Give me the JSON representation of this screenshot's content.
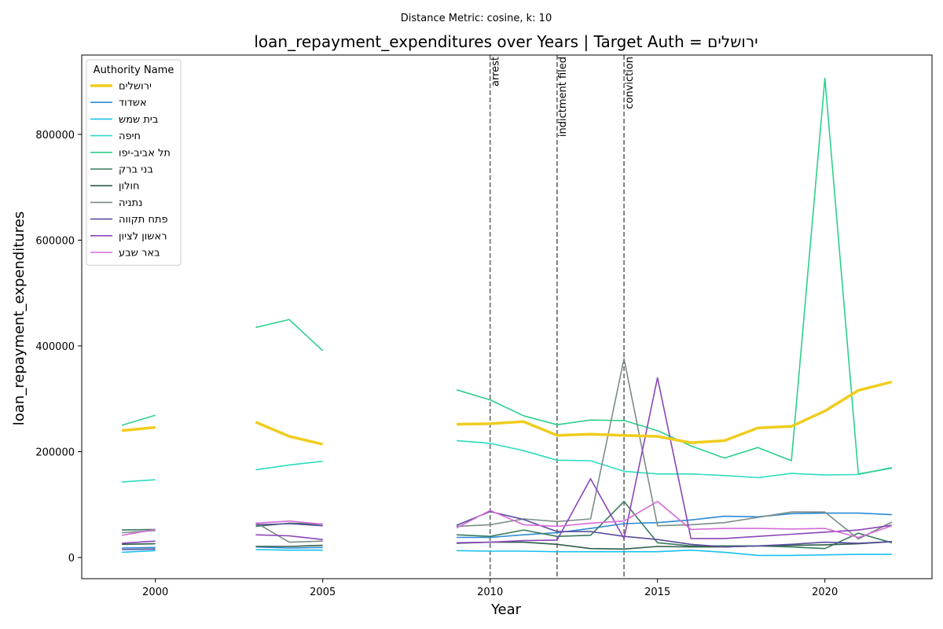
{
  "chart_data": {
    "type": "line",
    "suptitle": "Distance Metric: cosine, k: 10",
    "title": "loan_repayment_expenditures over Years | Target Auth = ירושלים",
    "xlabel": "Year",
    "ylabel": "loan_repayment_expenditures",
    "xlim": [
      1997.8,
      2023.2
    ],
    "ylim": [
      -40000,
      950000
    ],
    "x_ticks": [
      2000,
      2005,
      2010,
      2015,
      2020
    ],
    "y_ticks": [
      0,
      200000,
      400000,
      600000,
      800000
    ],
    "grid": false,
    "legend": {
      "title": "Authority Name",
      "placement": "top-left"
    },
    "events": [
      {
        "x": 2010,
        "label": "arrest"
      },
      {
        "x": 2012,
        "label": "indictment filed"
      },
      {
        "x": 2014,
        "label": "conviction"
      }
    ],
    "x": [
      1999,
      2000,
      2003,
      2004,
      2005,
      2009,
      2010,
      2011,
      2012,
      2013,
      2014,
      2015,
      2016,
      2017,
      2018,
      2019,
      2020,
      2021,
      2022
    ],
    "series": [
      {
        "name": "ירושלים",
        "color": "#f0cc1e",
        "target": true,
        "values": [
          240000,
          246000,
          256000,
          229000,
          214000,
          252000,
          253000,
          257000,
          231000,
          233000,
          231000,
          229000,
          217000,
          221000,
          245000,
          248000,
          277000,
          316000,
          332000
        ]
      },
      {
        "name": "אשדוד",
        "color": "#2a8ad4",
        "values": [
          18000,
          19000,
          20000,
          18000,
          19000,
          38000,
          38000,
          43000,
          47000,
          55000,
          64000,
          66000,
          71000,
          78000,
          77000,
          83000,
          84000,
          84000,
          81000
        ]
      },
      {
        "name": "בית שמש",
        "color": "#19c0ee",
        "values": [
          10000,
          13000,
          15000,
          14000,
          14000,
          13000,
          12000,
          12000,
          11000,
          11000,
          11000,
          11000,
          14000,
          10000,
          4000,
          4000,
          5000,
          6000,
          6000
        ]
      },
      {
        "name": "חיפה",
        "color": "#2edcc0",
        "values": [
          143000,
          147000,
          166000,
          175000,
          182000,
          221000,
          216000,
          202000,
          184000,
          183000,
          163000,
          158000,
          158000,
          155000,
          151000,
          159000,
          156000,
          157000,
          170000
        ]
      },
      {
        "name": "תל אביב-יפו",
        "color": "#2cd08c",
        "values": [
          250000,
          269000,
          435000,
          450000,
          391000,
          317000,
          298000,
          268000,
          251000,
          260000,
          259000,
          240000,
          211000,
          188000,
          208000,
          183000,
          906000,
          158000,
          169000
        ]
      },
      {
        "name": "בני ברק",
        "color": "#3a7a5e",
        "values": [
          52000,
          53000,
          59000,
          65000,
          63000,
          43000,
          40000,
          52000,
          40000,
          42000,
          106000,
          28000,
          22000,
          22000,
          22000,
          20000,
          17000,
          46000,
          28000
        ]
      },
      {
        "name": "חולון",
        "color": "#2f5e4a",
        "values": [
          25000,
          26000,
          21000,
          21000,
          23000,
          27000,
          29000,
          29000,
          25000,
          17000,
          16000,
          21000,
          20000,
          20000,
          22000,
          23000,
          24000,
          26000,
          30000
        ]
      },
      {
        "name": "נתניה",
        "color": "#7c8c88",
        "values": [
          47000,
          51000,
          66000,
          29000,
          31000,
          59000,
          62000,
          73000,
          68000,
          73000,
          376000,
          60000,
          62000,
          66000,
          76000,
          86000,
          86000,
          35000,
          67000
        ]
      },
      {
        "name": "פתח תקווה",
        "color": "#5a4e9c",
        "values": [
          15000,
          16000,
          62000,
          64000,
          60000,
          61000,
          87000,
          72000,
          49000,
          49000,
          40000,
          34000,
          25000,
          20000,
          22000,
          25000,
          29000,
          27000,
          30000
        ]
      },
      {
        "name": "ראשון לציון",
        "color": "#8a46b8",
        "values": [
          27000,
          31000,
          43000,
          41000,
          34000,
          28000,
          29000,
          32000,
          33000,
          149000,
          36000,
          340000,
          36000,
          36000,
          40000,
          44000,
          48000,
          52000,
          61000
        ]
      },
      {
        "name": "באר שבע",
        "color": "#d46cd8",
        "values": [
          42000,
          53000,
          65000,
          69000,
          63000,
          56000,
          89000,
          62000,
          59000,
          65000,
          69000,
          106000,
          53000,
          55000,
          55000,
          54000,
          55000,
          38000,
          60000
        ]
      }
    ],
    "gaps_after_x": [
      2000,
      2005
    ]
  }
}
